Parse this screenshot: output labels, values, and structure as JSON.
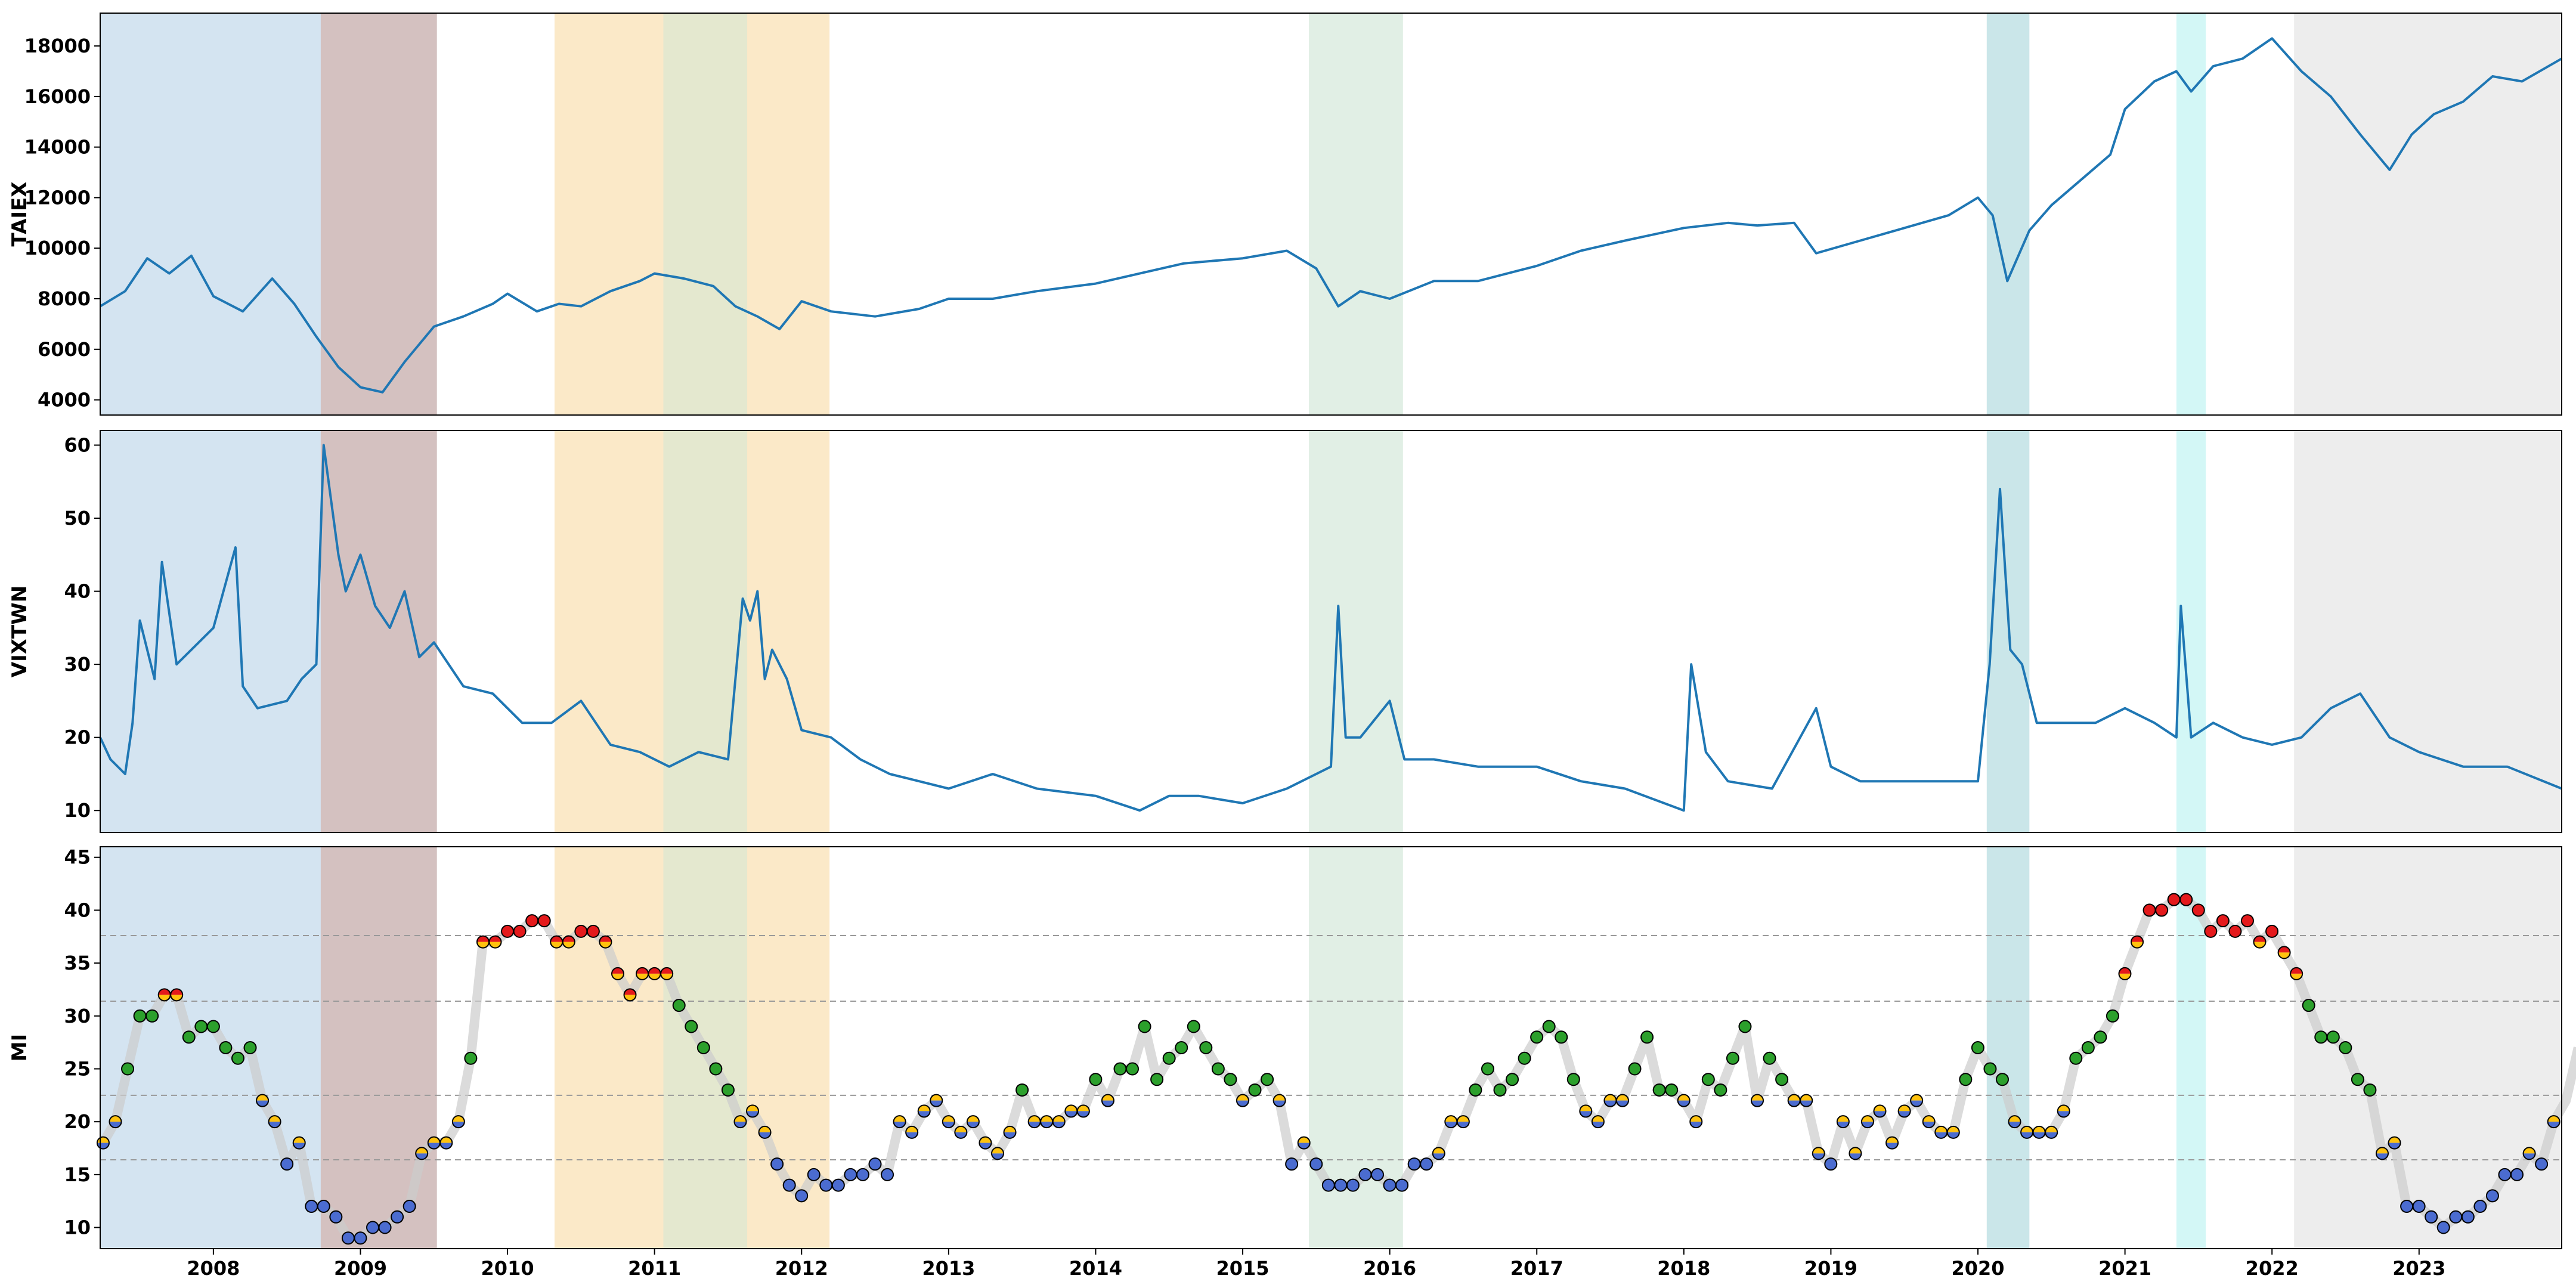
{
  "colors": {
    "line": "#1f77b4",
    "mi_track": "#cccccc",
    "band_blue": "#a9c9e4",
    "band_brown": "#a98382",
    "band_orange": "#f8d392",
    "band_olive": "#c9d2a0",
    "band_green": "#c3dfcb",
    "band_teal": "#95cdd4",
    "band_cyan": "#a8f0ee",
    "band_gray": "#dcdcdc",
    "dot_red": "#e41a1c",
    "dot_yellow": "#ffc20e",
    "dot_green": "#2ca02c",
    "dot_blue": "#4b6cd0"
  },
  "chart_data": [
    {
      "type": "line",
      "ylabel": "TAIEX",
      "ylim": [
        3400,
        19300
      ],
      "yticks": [
        "4000",
        "6000",
        "8000",
        "10000",
        "12000",
        "14000",
        "16000",
        "18000"
      ],
      "xlim": [
        2007.23,
        2023.97
      ],
      "x": [
        2007.23,
        2007.4,
        2007.55,
        2007.7,
        2007.85,
        2008.0,
        2008.2,
        2008.4,
        2008.55,
        2008.7,
        2008.85,
        2009.0,
        2009.15,
        2009.3,
        2009.5,
        2009.7,
        2009.9,
        2010.0,
        2010.2,
        2010.35,
        2010.5,
        2010.7,
        2010.9,
        2011.0,
        2011.2,
        2011.4,
        2011.55,
        2011.7,
        2011.85,
        2012.0,
        2012.2,
        2012.5,
        2012.8,
        2013.0,
        2013.3,
        2013.6,
        2014.0,
        2014.3,
        2014.6,
        2015.0,
        2015.3,
        2015.5,
        2015.65,
        2015.8,
        2016.0,
        2016.3,
        2016.6,
        2017.0,
        2017.3,
        2017.6,
        2018.0,
        2018.3,
        2018.5,
        2018.75,
        2018.9,
        2019.2,
        2019.5,
        2019.8,
        2020.0,
        2020.1,
        2020.2,
        2020.35,
        2020.5,
        2020.7,
        2020.9,
        2021.0,
        2021.2,
        2021.35,
        2021.45,
        2021.6,
        2021.8,
        2022.0,
        2022.2,
        2022.4,
        2022.6,
        2022.8,
        2022.95,
        2023.1,
        2023.3,
        2023.5,
        2023.7,
        2023.97
      ],
      "y": [
        7700,
        8300,
        9600,
        9000,
        9700,
        8100,
        7500,
        8800,
        7800,
        6500,
        5300,
        4500,
        4300,
        5500,
        6900,
        7300,
        7800,
        8200,
        7500,
        7800,
        7700,
        8300,
        8700,
        9000,
        8800,
        8500,
        7700,
        7300,
        6800,
        7900,
        7500,
        7300,
        7600,
        8000,
        8000,
        8300,
        8600,
        9000,
        9400,
        9600,
        9900,
        9200,
        7700,
        8300,
        8000,
        8700,
        8700,
        9300,
        9900,
        10300,
        10800,
        11000,
        10900,
        11000,
        9800,
        10300,
        10800,
        11300,
        12000,
        11300,
        8700,
        10700,
        11700,
        12700,
        13700,
        15500,
        16600,
        17000,
        16200,
        17200,
        17500,
        18300,
        17000,
        16000,
        14500,
        13100,
        14500,
        15300,
        15800,
        16800,
        16600,
        17500
      ]
    },
    {
      "type": "line",
      "ylabel": "VIXTWN",
      "ylim": [
        7,
        62
      ],
      "yticks": [
        "10",
        "20",
        "30",
        "40",
        "50",
        "60"
      ],
      "xlim": [
        2007.23,
        2023.97
      ],
      "x": [
        2007.23,
        2007.3,
        2007.4,
        2007.45,
        2007.5,
        2007.6,
        2007.65,
        2007.75,
        2007.9,
        2008.0,
        2008.15,
        2008.2,
        2008.3,
        2008.5,
        2008.6,
        2008.7,
        2008.75,
        2008.85,
        2008.9,
        2009.0,
        2009.1,
        2009.2,
        2009.3,
        2009.4,
        2009.5,
        2009.7,
        2009.9,
        2010.1,
        2010.3,
        2010.5,
        2010.7,
        2010.9,
        2011.1,
        2011.3,
        2011.5,
        2011.6,
        2011.65,
        2011.7,
        2011.75,
        2011.8,
        2011.9,
        2012.0,
        2012.2,
        2012.4,
        2012.6,
        2012.8,
        2013.0,
        2013.3,
        2013.6,
        2014.0,
        2014.3,
        2014.5,
        2014.7,
        2015.0,
        2015.3,
        2015.5,
        2015.6,
        2015.65,
        2015.7,
        2015.8,
        2016.0,
        2016.1,
        2016.3,
        2016.6,
        2017.0,
        2017.3,
        2017.6,
        2018.0,
        2018.05,
        2018.15,
        2018.3,
        2018.6,
        2018.9,
        2019.0,
        2019.2,
        2019.5,
        2019.8,
        2020.0,
        2020.08,
        2020.15,
        2020.22,
        2020.3,
        2020.4,
        2020.6,
        2020.8,
        2021.0,
        2021.2,
        2021.35,
        2021.38,
        2021.45,
        2021.6,
        2021.8,
        2022.0,
        2022.2,
        2022.4,
        2022.6,
        2022.8,
        2023.0,
        2023.3,
        2023.6,
        2023.97
      ],
      "y": [
        20,
        17,
        15,
        22,
        36,
        28,
        44,
        30,
        33,
        35,
        46,
        27,
        24,
        25,
        28,
        30,
        60,
        45,
        40,
        45,
        38,
        35,
        40,
        31,
        33,
        27,
        26,
        22,
        22,
        25,
        19,
        18,
        16,
        18,
        17,
        39,
        36,
        40,
        28,
        32,
        28,
        21,
        20,
        17,
        15,
        14,
        13,
        15,
        13,
        12,
        10,
        12,
        12,
        11,
        13,
        15,
        16,
        38,
        20,
        20,
        25,
        17,
        17,
        16,
        16,
        14,
        13,
        10,
        30,
        18,
        14,
        13,
        24,
        16,
        14,
        14,
        14,
        14,
        30,
        54,
        32,
        30,
        22,
        22,
        22,
        24,
        22,
        20,
        38,
        20,
        22,
        20,
        19,
        20,
        24,
        26,
        20,
        18,
        16,
        16,
        13
      ]
    },
    {
      "type": "scatter",
      "ylabel": "MI",
      "ylim": [
        8,
        46
      ],
      "yticks": [
        "10",
        "15",
        "20",
        "25",
        "30",
        "35",
        "40",
        "45"
      ],
      "thresholds": [
        16.4,
        22.5,
        31.4,
        37.6
      ],
      "xlim": [
        2007.23,
        2023.97
      ],
      "x_start": 2007.25,
      "x_step": 0.08333,
      "values": [
        18,
        20,
        25,
        30,
        30,
        32,
        32,
        28,
        29,
        29,
        27,
        26,
        27,
        22,
        20,
        16,
        18,
        12,
        12,
        11,
        9,
        9,
        10,
        10,
        11,
        12,
        17,
        18,
        18,
        20,
        26,
        37,
        37,
        38,
        38,
        39,
        39,
        37,
        37,
        38,
        38,
        37,
        34,
        32,
        34,
        34,
        34,
        31,
        29,
        27,
        25,
        23,
        20,
        21,
        19,
        16,
        14,
        13,
        15,
        14,
        14,
        15,
        15,
        16,
        15,
        20,
        19,
        21,
        22,
        20,
        19,
        20,
        18,
        17,
        19,
        23,
        20,
        20,
        20,
        21,
        21,
        24,
        22,
        25,
        25,
        29,
        24,
        26,
        27,
        29,
        27,
        25,
        24,
        22,
        23,
        24,
        22,
        16,
        18,
        16,
        14,
        14,
        14,
        15,
        15,
        14,
        14,
        16,
        16,
        17,
        20,
        20,
        23,
        25,
        23,
        24,
        26,
        28,
        29,
        28,
        24,
        21,
        20,
        22,
        22,
        25,
        28,
        23,
        23,
        22,
        20,
        24,
        23,
        26,
        29,
        22,
        26,
        24,
        22,
        22,
        17,
        16,
        20,
        17,
        20,
        21,
        18,
        21,
        22,
        20,
        19,
        19,
        24,
        27,
        25,
        24,
        20,
        19,
        19,
        19,
        21,
        26,
        27,
        28,
        30,
        34,
        37,
        40,
        40,
        41,
        41,
        40,
        38,
        39,
        38,
        39,
        37,
        38,
        36,
        34,
        31,
        28,
        28,
        27,
        24,
        23,
        17,
        18,
        12,
        12,
        11,
        10,
        11,
        11,
        12,
        13,
        15,
        15,
        17,
        16,
        20,
        22,
        27
      ]
    },
    {
      "type": "bands",
      "note_legend": "",
      "items": [
        {
          "x0": 2007.23,
          "x1": 2008.73,
          "color": "band_blue"
        },
        {
          "x0": 2008.73,
          "x1": 2009.52,
          "color": "band_brown"
        },
        {
          "x0": 2010.32,
          "x1": 2011.06,
          "color": "band_orange"
        },
        {
          "x0": 2011.06,
          "x1": 2011.63,
          "color": "band_olive"
        },
        {
          "x0": 2011.63,
          "x1": 2012.19,
          "color": "band_orange"
        },
        {
          "x0": 2015.45,
          "x1": 2016.09,
          "color": "band_green"
        },
        {
          "x0": 2020.06,
          "x1": 2020.35,
          "color": "band_teal"
        },
        {
          "x0": 2021.35,
          "x1": 2021.55,
          "color": "band_cyan"
        },
        {
          "x0": 2022.15,
          "x1": 2023.97,
          "color": "band_gray"
        }
      ]
    }
  ],
  "xaxis": {
    "ticks": [
      {
        "x": 2008.0,
        "label": "2008"
      },
      {
        "x": 2009.0,
        "label": "2009"
      },
      {
        "x": 2010.0,
        "label": "2010"
      },
      {
        "x": 2011.0,
        "label": "2011"
      },
      {
        "x": 2012.0,
        "label": "2012"
      },
      {
        "x": 2013.0,
        "label": "2013"
      },
      {
        "x": 2014.0,
        "label": "2014"
      },
      {
        "x": 2015.0,
        "label": "2015"
      },
      {
        "x": 2016.0,
        "label": "2016"
      },
      {
        "x": 2017.0,
        "label": "2017"
      },
      {
        "x": 2018.0,
        "label": "2018"
      },
      {
        "x": 2019.0,
        "label": "2019"
      },
      {
        "x": 2020.0,
        "label": "2020"
      },
      {
        "x": 2021.0,
        "label": "2021"
      },
      {
        "x": 2022.0,
        "label": "2022"
      },
      {
        "x": 2023.0,
        "label": "2023"
      }
    ]
  }
}
